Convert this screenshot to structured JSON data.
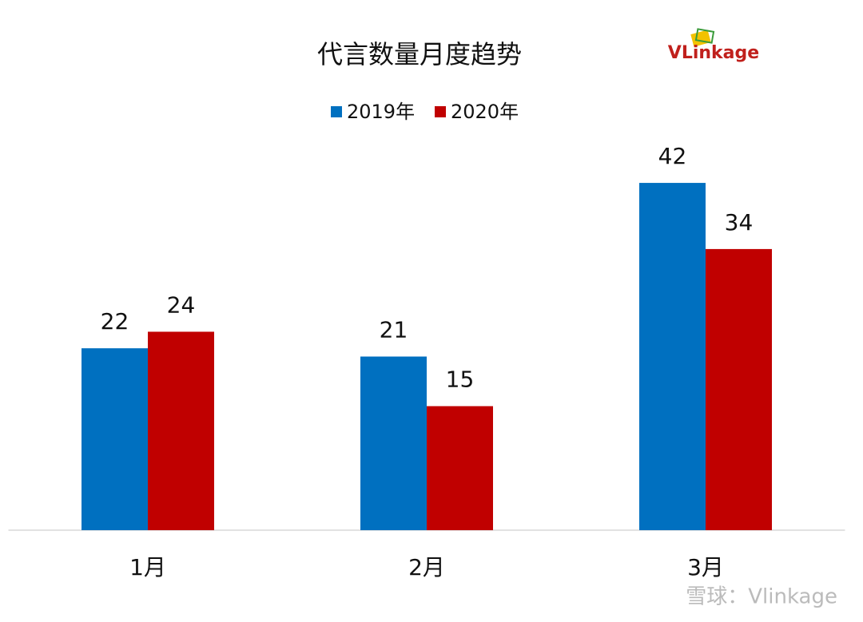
{
  "chart_data": {
    "type": "bar",
    "title": "代言数量月度趋势",
    "logo": "VLinkage",
    "watermark": "雪球：Vlinkage",
    "categories": [
      "1月",
      "2月",
      "3月"
    ],
    "series": [
      {
        "name": "2019年",
        "color": "#0070c0",
        "values": [
          22,
          21,
          42
        ]
      },
      {
        "name": "2020年",
        "color": "#c00000",
        "values": [
          24,
          15,
          34
        ]
      }
    ],
    "ylim": [
      0,
      45
    ]
  }
}
